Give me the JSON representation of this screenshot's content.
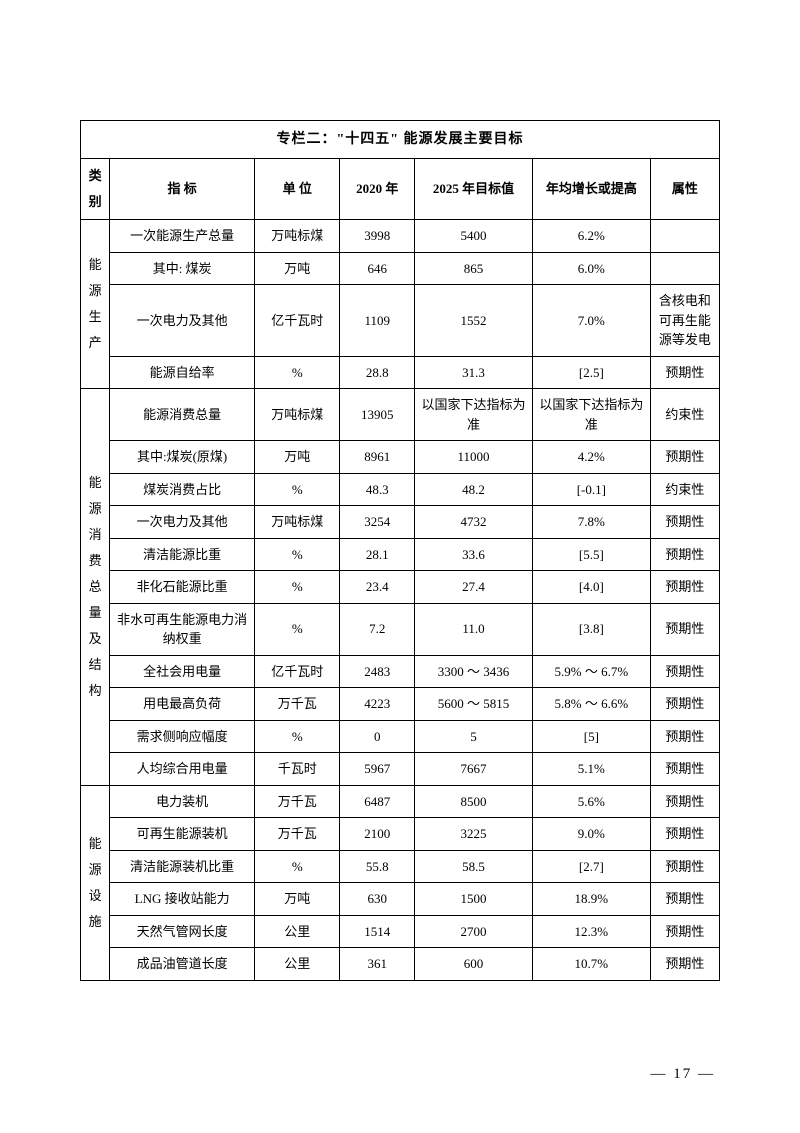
{
  "title": "专栏二：\"十四五\" 能源发展主要目标",
  "headers": {
    "category": "类别",
    "indicator": "指 标",
    "unit": "单 位",
    "y2020": "2020 年",
    "y2025": "2025 年目标值",
    "growth": "年均增长或提高",
    "attr": "属性"
  },
  "categories": {
    "production": "能源生产",
    "consumption": "能源消费总量及结构",
    "facility": "能源设施"
  },
  "rows": [
    {
      "indicator": "一次能源生产总量",
      "unit": "万吨标煤",
      "y2020": "3998",
      "y2025": "5400",
      "growth": "6.2%",
      "attr": ""
    },
    {
      "indicator": "其中: 煤炭",
      "unit": "万吨",
      "y2020": "646",
      "y2025": "865",
      "growth": "6.0%",
      "attr": ""
    },
    {
      "indicator": "一次电力及其他",
      "unit": "亿千瓦时",
      "y2020": "1109",
      "y2025": "1552",
      "growth": "7.0%",
      "attr": "含核电和可再生能源等发电"
    },
    {
      "indicator": "能源自给率",
      "unit": "%",
      "y2020": "28.8",
      "y2025": "31.3",
      "growth": "[2.5]",
      "attr": "预期性"
    },
    {
      "indicator": "能源消费总量",
      "unit": "万吨标煤",
      "y2020": "13905",
      "y2025": "以国家下达指标为准",
      "growth": "以国家下达指标为准",
      "attr": "约束性"
    },
    {
      "indicator": "其中:煤炭(原煤)",
      "unit": "万吨",
      "y2020": "8961",
      "y2025": "11000",
      "growth": "4.2%",
      "attr": "预期性"
    },
    {
      "indicator": "煤炭消费占比",
      "unit": "%",
      "y2020": "48.3",
      "y2025": "48.2",
      "growth": "[-0.1]",
      "attr": "约束性"
    },
    {
      "indicator": "一次电力及其他",
      "unit": "万吨标煤",
      "y2020": "3254",
      "y2025": "4732",
      "growth": "7.8%",
      "attr": "预期性"
    },
    {
      "indicator": "清洁能源比重",
      "unit": "%",
      "y2020": "28.1",
      "y2025": "33.6",
      "growth": "[5.5]",
      "attr": "预期性"
    },
    {
      "indicator": "非化石能源比重",
      "unit": "%",
      "y2020": "23.4",
      "y2025": "27.4",
      "growth": "[4.0]",
      "attr": "预期性"
    },
    {
      "indicator": "非水可再生能源电力消纳权重",
      "unit": "%",
      "y2020": "7.2",
      "y2025": "11.0",
      "growth": "[3.8]",
      "attr": "预期性"
    },
    {
      "indicator": "全社会用电量",
      "unit": "亿千瓦时",
      "y2020": "2483",
      "y2025": "3300 ～ 3436",
      "growth": "5.9% ～ 6.7%",
      "attr": "预期性"
    },
    {
      "indicator": "用电最高负荷",
      "unit": "万千瓦",
      "y2020": "4223",
      "y2025": "5600 ～ 5815",
      "growth": "5.8% ～ 6.6%",
      "attr": "预期性"
    },
    {
      "indicator": "需求侧响应幅度",
      "unit": "%",
      "y2020": "0",
      "y2025": "5",
      "growth": "[5]",
      "attr": "预期性"
    },
    {
      "indicator": "人均综合用电量",
      "unit": "千瓦时",
      "y2020": "5967",
      "y2025": "7667",
      "growth": "5.1%",
      "attr": "预期性"
    },
    {
      "indicator": "电力装机",
      "unit": "万千瓦",
      "y2020": "6487",
      "y2025": "8500",
      "growth": "5.6%",
      "attr": "预期性"
    },
    {
      "indicator": "可再生能源装机",
      "unit": "万千瓦",
      "y2020": "2100",
      "y2025": "3225",
      "growth": "9.0%",
      "attr": "预期性"
    },
    {
      "indicator": "清洁能源装机比重",
      "unit": "%",
      "y2020": "55.8",
      "y2025": "58.5",
      "growth": "[2.7]",
      "attr": "预期性"
    },
    {
      "indicator": "LNG 接收站能力",
      "unit": "万吨",
      "y2020": "630",
      "y2025": "1500",
      "growth": "18.9%",
      "attr": "预期性"
    },
    {
      "indicator": "天然气管网长度",
      "unit": "公里",
      "y2020": "1514",
      "y2025": "2700",
      "growth": "12.3%",
      "attr": "预期性"
    },
    {
      "indicator": "成品油管道长度",
      "unit": "公里",
      "y2020": "361",
      "y2025": "600",
      "growth": "10.7%",
      "attr": "预期性"
    }
  ],
  "page_number": "— 17 —"
}
